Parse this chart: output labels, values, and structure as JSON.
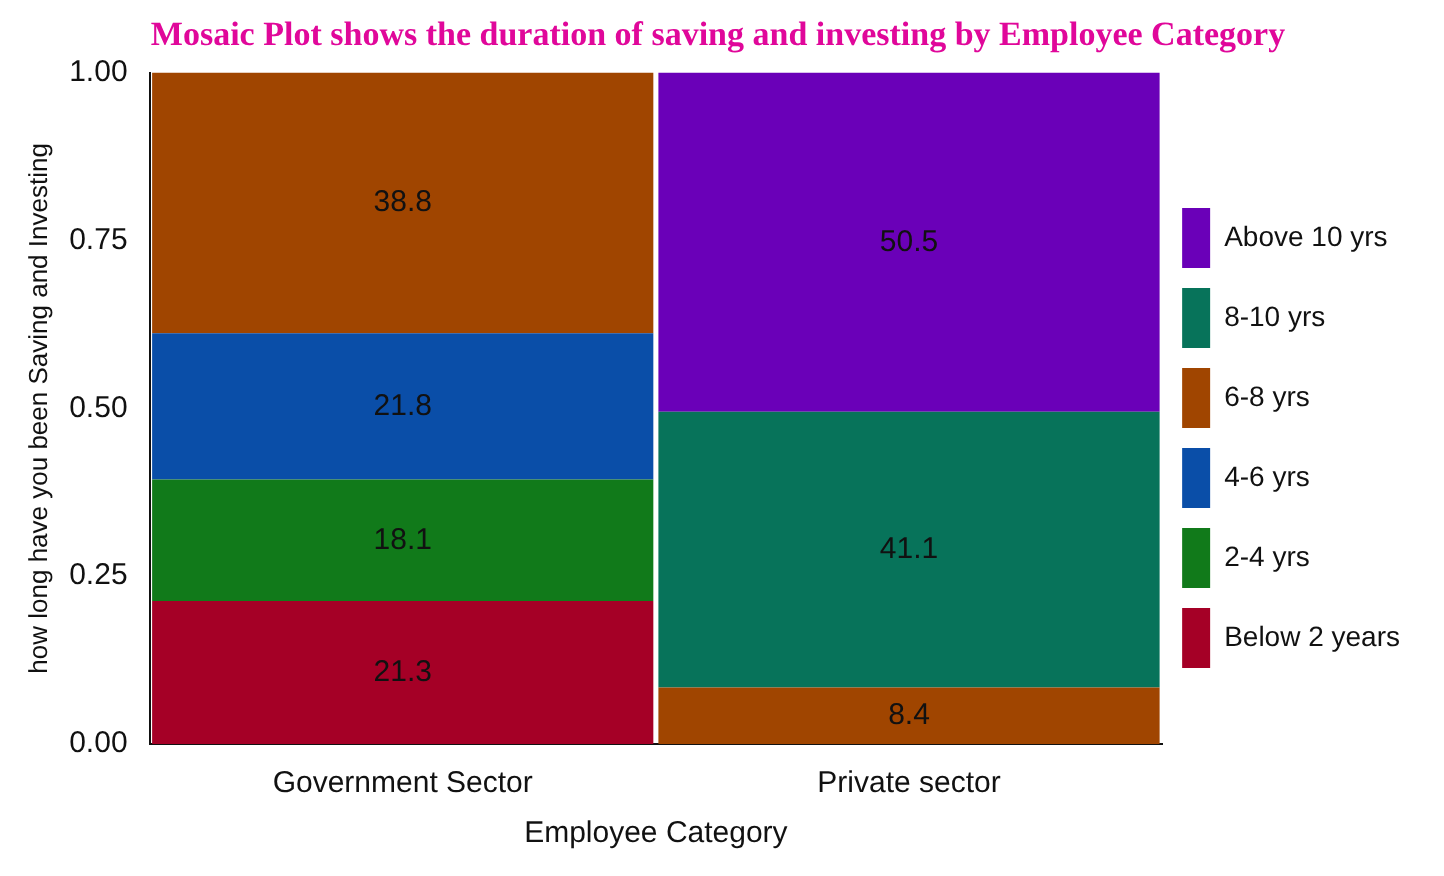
{
  "chart_data": {
    "type": "bar",
    "stacked": true,
    "title": "Mosaic Plot shows the duration of saving and investing by Employee Category",
    "xlabel": "Employee Category",
    "ylabel": "how long have you been Saving and Investing",
    "categories": [
      "Government Sector",
      "Private sector"
    ],
    "series": [
      {
        "name": "Below 2 years",
        "color": "#a50026",
        "values": [
          0.213,
          null
        ]
      },
      {
        "name": "2-4 yrs",
        "color": "#117a1a",
        "values": [
          0.181,
          null
        ]
      },
      {
        "name": "4-6 yrs",
        "color": "#0a4ea8",
        "values": [
          0.218,
          null
        ]
      },
      {
        "name": "6-8 yrs",
        "color": "#a04500",
        "values": [
          0.388,
          0.084
        ]
      },
      {
        "name": "8-10 yrs",
        "color": "#07735a",
        "values": [
          null,
          0.411
        ]
      },
      {
        "name": "Above 10 yrs",
        "color": "#6a00b8",
        "values": [
          null,
          0.505
        ]
      }
    ],
    "annotations": [
      "21.3",
      "18.1",
      "21.8",
      "38.8",
      "8.4",
      "41.1",
      "50.5"
    ],
    "ylim": [
      0,
      1
    ],
    "yticks": [
      {
        "value": 0,
        "label": "0.00"
      },
      {
        "value": 0.25,
        "label": "0.25"
      },
      {
        "value": 0.5,
        "label": "0.50"
      },
      {
        "value": 0.75,
        "label": "0.75"
      },
      {
        "value": 1,
        "label": "1.00"
      }
    ],
    "grid": false,
    "legend": "right"
  }
}
